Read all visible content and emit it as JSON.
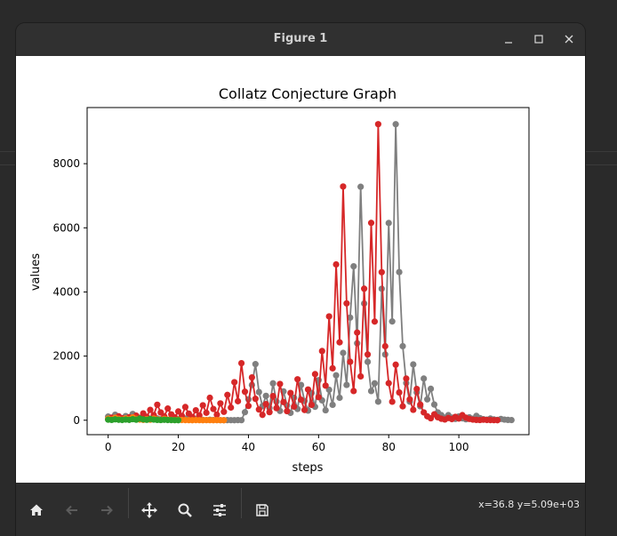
{
  "window": {
    "title": "Figure 1",
    "minimize_icon": "minimize-icon",
    "maximize_icon": "maximize-icon",
    "close_icon": "close-icon"
  },
  "toolbar": {
    "buttons": [
      {
        "name": "home-button",
        "icon": "home-icon"
      },
      {
        "name": "back-button",
        "icon": "arrow-left-icon"
      },
      {
        "name": "forward-button",
        "icon": "arrow-right-icon"
      },
      {
        "name": "pan-button",
        "icon": "move-icon"
      },
      {
        "name": "zoom-button",
        "icon": "magnifier-icon"
      },
      {
        "name": "configure-subplots-button",
        "icon": "sliders-icon"
      },
      {
        "name": "save-button",
        "icon": "floppy-icon"
      }
    ],
    "coords": "x=36.8 y=5.09e+03"
  },
  "chart_data": {
    "type": "line",
    "title": "Collatz Conjecture Graph",
    "xlabel": "steps",
    "ylabel": "values",
    "xlim": [
      -6,
      120
    ],
    "ylim": [
      -450,
      9750
    ],
    "xticks": [
      0,
      20,
      40,
      60,
      80,
      100
    ],
    "yticks": [
      0,
      2000,
      4000,
      6000,
      8000
    ],
    "grid": false,
    "legend": false,
    "series": [
      {
        "color": "#7f7f7f",
        "values": [
          114,
          57,
          172,
          86,
          43,
          130,
          65,
          196,
          98,
          49,
          148,
          74,
          37,
          112,
          56,
          28,
          14,
          7,
          22,
          11,
          34,
          17,
          52,
          26,
          13,
          40,
          20,
          10,
          5,
          16,
          8,
          4,
          2,
          1,
          4,
          2,
          1,
          4,
          2,
          250,
          650,
          1100,
          1750,
          880,
          440,
          760,
          380,
          1150,
          580,
          290,
          900,
          460,
          230,
          700,
          350,
          1100,
          600,
          300,
          850,
          420,
          1250,
          620,
          310,
          950,
          480,
          1400,
          700,
          2100,
          1100,
          3200,
          4800,
          2400,
          7280,
          3640,
          1820,
          910,
          1150,
          580,
          4100,
          2050,
          6150,
          3080,
          9230,
          4620,
          2310,
          1160,
          580,
          1740,
          870,
          435,
          1300,
          650,
          980,
          490,
          245,
          160,
          80,
          160,
          80,
          40,
          120,
          60,
          30,
          90,
          45,
          135,
          68,
          34,
          17,
          52,
          26,
          13,
          40,
          20,
          10,
          5
        ]
      },
      {
        "color": "#d62728",
        "values": [
          27,
          82,
          41,
          124,
          62,
          31,
          94,
          47,
          142,
          71,
          214,
          107,
          322,
          161,
          484,
          242,
          121,
          364,
          182,
          91,
          274,
          137,
          412,
          206,
          103,
          310,
          155,
          466,
          233,
          700,
          350,
          175,
          526,
          263,
          790,
          395,
          1186,
          593,
          1780,
          890,
          445,
          1336,
          668,
          334,
          167,
          502,
          251,
          754,
          377,
          1132,
          566,
          283,
          850,
          425,
          1276,
          638,
          319,
          958,
          479,
          1438,
          719,
          2158,
          1079,
          3238,
          1619,
          4858,
          2429,
          7288,
          3644,
          1822,
          911,
          2734,
          1367,
          4102,
          2051,
          6154,
          3077,
          9232,
          4616,
          2308,
          1154,
          577,
          1732,
          866,
          433,
          1300,
          650,
          325,
          976,
          488,
          244,
          122,
          61,
          184,
          92,
          46,
          23,
          70,
          35,
          106,
          53,
          160,
          80,
          40,
          20,
          10,
          5,
          16,
          8,
          4,
          2,
          1
        ]
      },
      {
        "color": "#ff7f0e",
        "values": [
          50,
          25,
          76,
          38,
          19,
          58,
          29,
          88,
          44,
          22,
          11,
          34,
          17,
          52,
          26,
          13,
          40,
          20,
          10,
          5,
          16,
          8,
          4,
          2,
          1,
          4,
          2,
          1,
          4,
          2,
          1,
          4,
          2,
          1
        ]
      },
      {
        "color": "#2ca02c",
        "values": [
          18,
          9,
          28,
          14,
          7,
          22,
          11,
          34,
          17,
          52,
          26,
          13,
          40,
          20,
          10,
          5,
          16,
          8,
          4,
          2,
          1
        ]
      }
    ]
  }
}
